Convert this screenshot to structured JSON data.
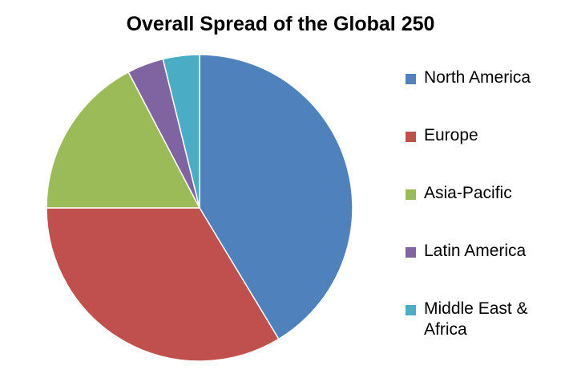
{
  "chart_data": {
    "type": "pie",
    "title": "Overall Spread of the Global 250",
    "legend_position": "right",
    "start_angle_deg": 0,
    "direction": "clockwise",
    "slices": [
      {
        "name": "North America",
        "value": 43,
        "color": "#4F81BD"
      },
      {
        "name": "Europe",
        "value": 35,
        "color": "#C0504D"
      },
      {
        "name": "Asia-Pacific",
        "value": 18,
        "color": "#9BBB59"
      },
      {
        "name": "Latin America",
        "value": 4,
        "color": "#8064A2"
      },
      {
        "name": "Middle East & Africa",
        "value": 4,
        "color": "#4BACC6"
      }
    ]
  }
}
